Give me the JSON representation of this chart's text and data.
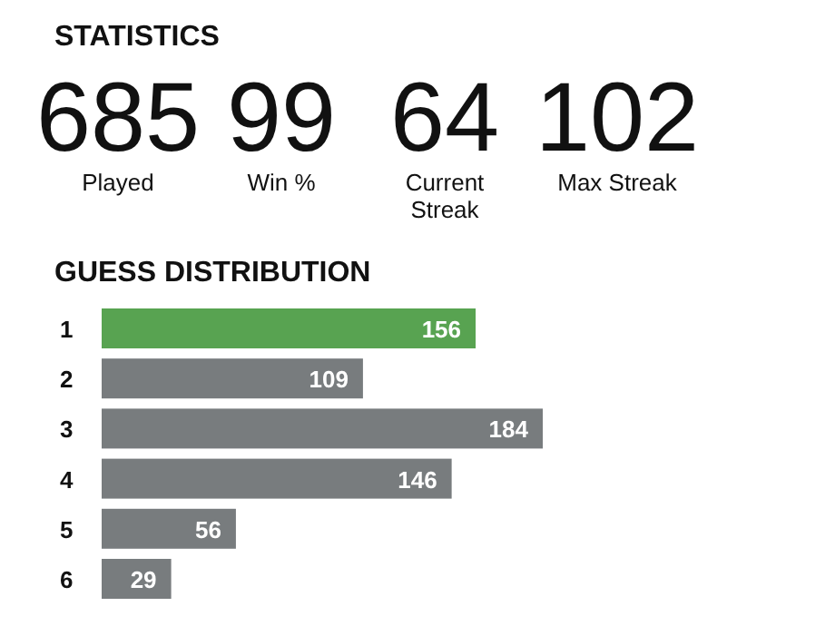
{
  "chart_data": [
    {
      "type": "other",
      "title": "STATISTICS",
      "categories": [
        "Played",
        "Win %",
        "Current Streak",
        "Max Streak"
      ],
      "values": [
        685,
        99,
        64,
        102
      ],
      "data_labels": true
    },
    {
      "type": "bar",
      "orientation": "horizontal",
      "title": "GUESS DISTRIBUTION",
      "categories": [
        "1",
        "2",
        "3",
        "4",
        "5",
        "6"
      ],
      "values": [
        156,
        109,
        184,
        146,
        56,
        29
      ],
      "colors": [
        "#58a351",
        "#787c7e",
        "#787c7e",
        "#787c7e",
        "#787c7e",
        "#787c7e"
      ],
      "data_labels": true
    }
  ]
}
